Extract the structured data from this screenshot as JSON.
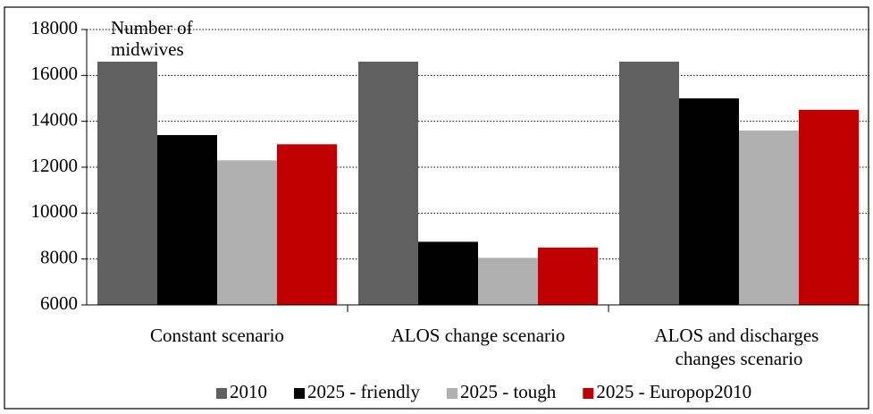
{
  "chart_data": {
    "type": "bar",
    "y_label": "Number of midwives",
    "categories": [
      "Constant scenario",
      "ALOS change scenario",
      "ALOS and discharges changes scenario"
    ],
    "series": [
      {
        "name": "2010",
        "color": "#606060",
        "values": [
          16600,
          16600,
          16600
        ]
      },
      {
        "name": "2025 - friendly",
        "color": "#000000",
        "values": [
          13400,
          8750,
          15000
        ]
      },
      {
        "name": "2025 - tough",
        "color": "#b0b0b0",
        "values": [
          12300,
          8050,
          13600
        ]
      },
      {
        "name": "2025 - Europop2010",
        "color": "#c00000",
        "values": [
          13000,
          8500,
          14500
        ]
      }
    ],
    "ylim": [
      6000,
      18000
    ],
    "yticks": [
      6000,
      8000,
      10000,
      12000,
      14000,
      16000,
      18000
    ],
    "grid": true,
    "legend": "bottom"
  }
}
